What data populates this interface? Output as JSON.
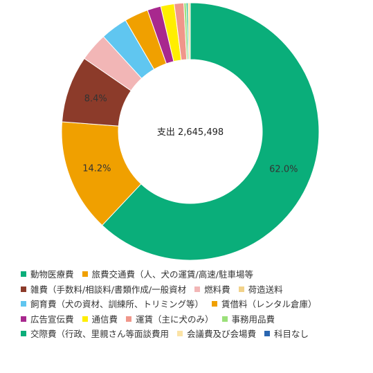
{
  "chart_data": {
    "type": "pie",
    "center_label": "支出 2,645,498",
    "slices": [
      {
        "name": "動物医療費",
        "value": 62.0,
        "color": "#0aae7a",
        "label": "62.0%"
      },
      {
        "name": "旅費交通費（人、犬の運賃/高速/駐車場等",
        "value": 14.2,
        "color": "#f0a000",
        "label": "14.2%"
      },
      {
        "name": "雑費（手数料/相談料/書類作成/一般資材",
        "value": 8.4,
        "color": "#8c3b2a",
        "label": "8.4%"
      },
      {
        "name": "燃料費",
        "value": 3.6,
        "color": "#f2b6b6",
        "label": ""
      },
      {
        "name": "荷造送料",
        "value": 0.0,
        "color": "#f2d28a",
        "label": ""
      },
      {
        "name": "飼育費（犬の資材、訓練所、トリミング等）",
        "value": 3.4,
        "color": "#60c6f0",
        "label": ""
      },
      {
        "name": "賃借料（レンタル倉庫）",
        "value": 3.0,
        "color": "#f0a000",
        "label": ""
      },
      {
        "name": "広告宣伝費",
        "value": 1.7,
        "color": "#a8288e",
        "label": ""
      },
      {
        "name": "通信費",
        "value": 1.7,
        "color": "#ffee00",
        "label": ""
      },
      {
        "name": "運賃（主に犬のみ）",
        "value": 1.2,
        "color": "#f0968a",
        "label": ""
      },
      {
        "name": "事務用品費",
        "value": 0.3,
        "color": "#9be07a",
        "label": ""
      },
      {
        "name": "交際費（行政、里親さん等面談費用",
        "value": 0.2,
        "color": "#0aae7a",
        "label": ""
      },
      {
        "name": "会議費及び会場費",
        "value": 0.3,
        "color": "#fbe3a6",
        "label": ""
      },
      {
        "name": "科目なし",
        "value": 0.0,
        "color": "#2a66b0",
        "label": ""
      }
    ],
    "legend": {
      "rows": [
        [
          "動物医療費",
          "旅費交通費（人、犬の運賃/高速/駐車場等"
        ],
        [
          "雑費（手数料/相談料/書類作成/一般資材",
          "燃料費",
          "荷造送料"
        ],
        [
          "飼育費（犬の資材、訓練所、トリミング等）",
          "賃借料（レンタル倉庫）"
        ],
        [
          "広告宣伝費",
          "通信費",
          "運賃（主に犬のみ）",
          "事務用品費"
        ],
        [
          "交際費（行政、里親さん等面談費用",
          "会議費及び会場費",
          "科目なし"
        ]
      ],
      "position": "bottom"
    }
  }
}
